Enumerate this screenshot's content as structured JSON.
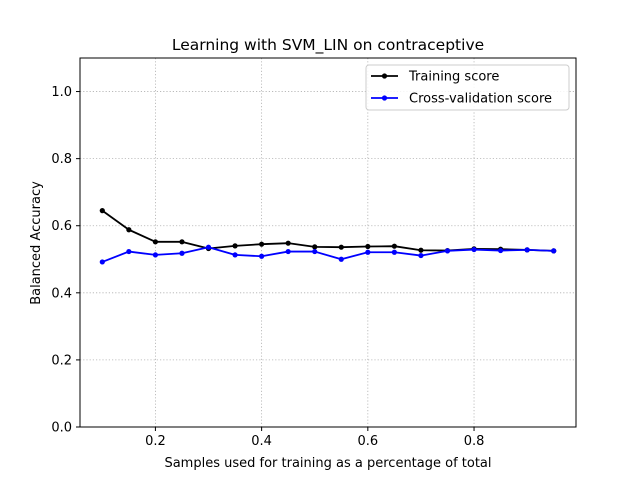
{
  "chart_data": {
    "type": "line",
    "title": "Learning with SVM_LIN on contraceptive",
    "xlabel": "Samples used for training as a percentage of total",
    "ylabel": "Balanced Accuracy",
    "xlim": [
      0.058,
      0.992
    ],
    "ylim": [
      0.0,
      1.1
    ],
    "xticks": [
      0.2,
      0.4,
      0.6,
      0.8
    ],
    "yticks": [
      0.0,
      0.2,
      0.4,
      0.6,
      0.8,
      1.0
    ],
    "xtick_labels": [
      "0.2",
      "0.4",
      "0.6",
      "0.8"
    ],
    "ytick_labels": [
      "0.0",
      "0.2",
      "0.4",
      "0.6",
      "0.8",
      "1.0"
    ],
    "grid": true,
    "legend_position": "top-right",
    "x": [
      0.1,
      0.15,
      0.2,
      0.25,
      0.3,
      0.35,
      0.4,
      0.45,
      0.5,
      0.55,
      0.6,
      0.65,
      0.7,
      0.75,
      0.8,
      0.85,
      0.9,
      0.95
    ],
    "series": [
      {
        "name": "Training score",
        "color": "#000000",
        "values": [
          0.645,
          0.588,
          0.552,
          0.552,
          0.532,
          0.54,
          0.545,
          0.548,
          0.537,
          0.536,
          0.538,
          0.539,
          0.527,
          0.526,
          0.531,
          0.53,
          0.528,
          0.525
        ]
      },
      {
        "name": "Cross-validation score",
        "color": "#0000ff",
        "values": [
          0.492,
          0.523,
          0.513,
          0.518,
          0.536,
          0.513,
          0.509,
          0.523,
          0.523,
          0.5,
          0.521,
          0.521,
          0.511,
          0.525,
          0.529,
          0.526,
          0.528,
          0.525
        ]
      }
    ]
  }
}
